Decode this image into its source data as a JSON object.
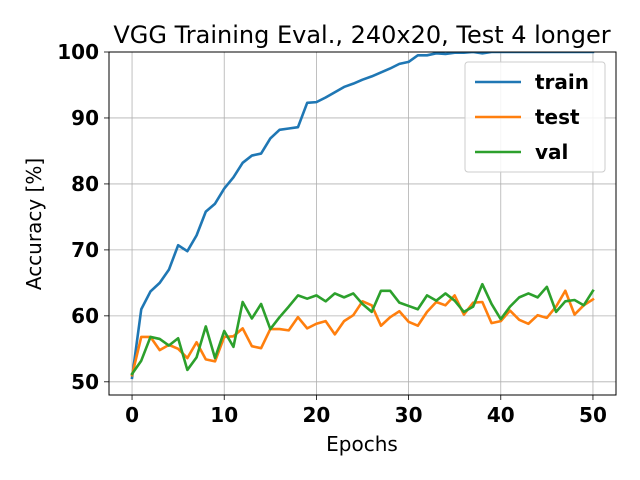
{
  "chart_data": {
    "type": "line",
    "title": "VGG Training Eval., 240x20, Test 4 longer",
    "xlabel": "Epochs",
    "ylabel": "Accuracy [%]",
    "xlim": [
      -2.5,
      52.5
    ],
    "ylim": [
      48,
      100
    ],
    "xticks": [
      0,
      10,
      20,
      30,
      40,
      50
    ],
    "yticks": [
      50,
      60,
      70,
      80,
      90,
      100
    ],
    "grid": true,
    "legend_position": "top-right",
    "x": [
      0,
      1,
      2,
      3,
      4,
      5,
      6,
      7,
      8,
      9,
      10,
      11,
      12,
      13,
      14,
      15,
      16,
      17,
      18,
      19,
      20,
      21,
      22,
      23,
      24,
      25,
      26,
      27,
      28,
      29,
      30,
      31,
      32,
      33,
      34,
      35,
      36,
      37,
      38,
      39,
      40,
      41,
      42,
      43,
      44,
      45,
      46,
      47,
      48,
      49,
      50
    ],
    "series": [
      {
        "name": "train",
        "color": "#1f77b4",
        "values": [
          50.6,
          61.0,
          63.7,
          65.0,
          67.0,
          70.7,
          69.8,
          72.2,
          75.8,
          77.0,
          79.3,
          81.0,
          83.2,
          84.3,
          84.6,
          86.9,
          88.2,
          88.4,
          88.6,
          92.3,
          92.4,
          93.1,
          93.9,
          94.7,
          95.2,
          95.8,
          96.3,
          96.9,
          97.5,
          98.2,
          98.5,
          99.5,
          99.5,
          99.8,
          99.7,
          99.9,
          99.9,
          100.0,
          99.8,
          100.0,
          100.0,
          100.0,
          100.0,
          100.0,
          100.0,
          100.0,
          100.0,
          100.0,
          100.0,
          100.0,
          100.0
        ]
      },
      {
        "name": "test",
        "color": "#ff7f0e",
        "values": [
          51.0,
          56.8,
          56.8,
          54.8,
          55.6,
          55.0,
          53.6,
          56.0,
          53.4,
          53.1,
          56.8,
          56.9,
          58.1,
          55.4,
          55.1,
          58.0,
          58.0,
          57.8,
          59.8,
          58.1,
          58.8,
          59.2,
          57.2,
          59.2,
          60.1,
          62.2,
          61.6,
          58.5,
          59.8,
          60.7,
          59.1,
          58.5,
          60.6,
          62.1,
          61.6,
          63.1,
          60.2,
          62.0,
          62.1,
          58.9,
          59.2,
          60.8,
          59.4,
          58.8,
          60.1,
          59.7,
          61.4,
          63.8,
          60.2,
          61.6,
          62.5
        ]
      },
      {
        "name": "val",
        "color": "#2ca02c",
        "values": [
          51.2,
          53.2,
          56.8,
          56.5,
          55.5,
          56.6,
          51.8,
          53.7,
          58.4,
          53.6,
          57.7,
          55.3,
          62.1,
          59.6,
          61.8,
          58.0,
          59.8,
          61.4,
          63.1,
          62.6,
          63.1,
          62.2,
          63.4,
          62.8,
          63.4,
          61.8,
          60.6,
          63.8,
          63.8,
          62.0,
          61.5,
          61.0,
          63.1,
          62.3,
          63.4,
          62.3,
          60.6,
          61.4,
          64.8,
          61.8,
          59.5,
          61.4,
          62.8,
          63.4,
          62.8,
          64.4,
          60.6,
          62.2,
          62.4,
          61.6,
          63.8
        ]
      }
    ]
  }
}
